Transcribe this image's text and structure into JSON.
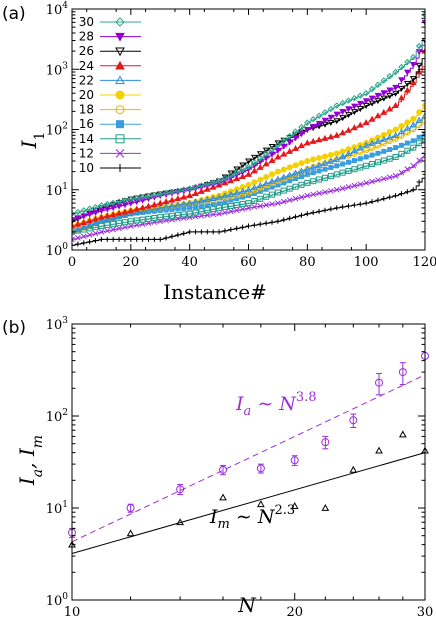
{
  "chart_data": [
    {
      "panel": "(a)",
      "type": "line",
      "xlabel": "Instance#",
      "ylabel_main": "I",
      "ylabel_sub": "1",
      "xlim": [
        0,
        120
      ],
      "ylim": [
        1,
        10000
      ],
      "yscale": "log",
      "grid": false,
      "legend_placement": "top-left",
      "x_ticks": [
        "0",
        "20",
        "40",
        "60",
        "80",
        "100",
        "120"
      ],
      "y_ticks": [
        {
          "base": "10",
          "exp": "0"
        },
        {
          "base": "10",
          "exp": "1"
        },
        {
          "base": "10",
          "exp": "2"
        },
        {
          "base": "10",
          "exp": "3"
        },
        {
          "base": "10",
          "exp": "4"
        }
      ],
      "series": [
        {
          "name": "30",
          "color": "#2ca58d",
          "marker": "diamond-open",
          "points": [
            [
              0,
              4
            ],
            [
              10,
              5.5
            ],
            [
              20,
              7
            ],
            [
              30,
              8.5
            ],
            [
              40,
              10.5
            ],
            [
              50,
              14
            ],
            [
              60,
              24
            ],
            [
              70,
              55
            ],
            [
              80,
              130
            ],
            [
              90,
              250
            ],
            [
              100,
              400
            ],
            [
              110,
              900
            ],
            [
              116,
              1600
            ],
            [
              119,
              3000
            ],
            [
              120,
              8000
            ]
          ]
        },
        {
          "name": "28",
          "color": "#9400d3",
          "marker": "tri-down-filled",
          "points": [
            [
              0,
              3.2
            ],
            [
              10,
              4.5
            ],
            [
              20,
              6
            ],
            [
              30,
              8
            ],
            [
              40,
              10
            ],
            [
              50,
              13
            ],
            [
              60,
              22
            ],
            [
              70,
              45
            ],
            [
              80,
              100
            ],
            [
              90,
              180
            ],
            [
              100,
              300
            ],
            [
              110,
              500
            ],
            [
              116,
              1200
            ],
            [
              119,
              2500
            ],
            [
              120,
              6000
            ]
          ]
        },
        {
          "name": "26",
          "color": "#000000",
          "marker": "tri-down-open",
          "points": [
            [
              0,
              3
            ],
            [
              10,
              5
            ],
            [
              20,
              7
            ],
            [
              30,
              8.5
            ],
            [
              40,
              10
            ],
            [
              50,
              14
            ],
            [
              60,
              30
            ],
            [
              70,
              60
            ],
            [
              80,
              100
            ],
            [
              90,
              140
            ],
            [
              100,
              250
            ],
            [
              110,
              400
            ],
            [
              116,
              700
            ],
            [
              119,
              1500
            ],
            [
              120,
              3000
            ]
          ]
        },
        {
          "name": "24",
          "color": "#e31a1c",
          "marker": "tri-up-filled",
          "points": [
            [
              0,
              2.5
            ],
            [
              10,
              3.5
            ],
            [
              20,
              4.5
            ],
            [
              30,
              6
            ],
            [
              40,
              8
            ],
            [
              50,
              12
            ],
            [
              60,
              18
            ],
            [
              70,
              35
            ],
            [
              80,
              60
            ],
            [
              90,
              80
            ],
            [
              100,
              130
            ],
            [
              110,
              250
            ],
            [
              116,
              600
            ],
            [
              119,
              1100
            ],
            [
              120,
              2000
            ]
          ]
        },
        {
          "name": "22",
          "color": "#2b8cd8",
          "marker": "tri-up-open",
          "points": [
            [
              0,
              2
            ],
            [
              10,
              3
            ],
            [
              20,
              4
            ],
            [
              30,
              5
            ],
            [
              40,
              6
            ],
            [
              50,
              7.5
            ],
            [
              60,
              10
            ],
            [
              70,
              15
            ],
            [
              80,
              22
            ],
            [
              90,
              32
            ],
            [
              100,
              55
            ],
            [
              110,
              80
            ],
            [
              116,
              120
            ],
            [
              120,
              170
            ]
          ]
        },
        {
          "name": "20",
          "color": "#f5d000",
          "marker": "circle-filled",
          "points": [
            [
              0,
              2.5
            ],
            [
              10,
              3.5
            ],
            [
              20,
              4.5
            ],
            [
              30,
              5
            ],
            [
              40,
              6
            ],
            [
              50,
              8
            ],
            [
              60,
              12
            ],
            [
              70,
              20
            ],
            [
              80,
              30
            ],
            [
              90,
              40
            ],
            [
              100,
              60
            ],
            [
              110,
              100
            ],
            [
              116,
              150
            ],
            [
              120,
              250
            ]
          ]
        },
        {
          "name": "18",
          "color": "#e6b800",
          "marker": "circle-open",
          "points": [
            [
              0,
              2
            ],
            [
              10,
              3
            ],
            [
              20,
              4
            ],
            [
              30,
              5
            ],
            [
              40,
              6
            ],
            [
              50,
              7
            ],
            [
              60,
              9
            ],
            [
              70,
              14
            ],
            [
              80,
              22
            ],
            [
              90,
              32
            ],
            [
              100,
              45
            ],
            [
              110,
              70
            ],
            [
              116,
              100
            ],
            [
              120,
              140
            ]
          ]
        },
        {
          "name": "16",
          "color": "#3a9de0",
          "marker": "square-filled",
          "points": [
            [
              0,
              2
            ],
            [
              10,
              3
            ],
            [
              20,
              4
            ],
            [
              30,
              4.5
            ],
            [
              40,
              5
            ],
            [
              50,
              6
            ],
            [
              60,
              8
            ],
            [
              70,
              12
            ],
            [
              80,
              18
            ],
            [
              90,
              25
            ],
            [
              100,
              35
            ],
            [
              110,
              50
            ],
            [
              116,
              65
            ],
            [
              120,
              85
            ]
          ]
        },
        {
          "name": "14",
          "color": "#1f9e89",
          "marker": "square-open",
          "points": [
            [
              0,
              2
            ],
            [
              10,
              2.5
            ],
            [
              20,
              3
            ],
            [
              30,
              3.5
            ],
            [
              40,
              4
            ],
            [
              50,
              5
            ],
            [
              60,
              6
            ],
            [
              70,
              9
            ],
            [
              80,
              13
            ],
            [
              90,
              18
            ],
            [
              100,
              25
            ],
            [
              110,
              35
            ],
            [
              116,
              50
            ],
            [
              120,
              70
            ]
          ]
        },
        {
          "name": "12",
          "color": "#9b30d9",
          "marker": "x",
          "points": [
            [
              0,
              1.5
            ],
            [
              10,
              2
            ],
            [
              20,
              2.5
            ],
            [
              30,
              3
            ],
            [
              40,
              3.5
            ],
            [
              50,
              4
            ],
            [
              60,
              5
            ],
            [
              70,
              6
            ],
            [
              80,
              8
            ],
            [
              90,
              10
            ],
            [
              100,
              13
            ],
            [
              110,
              17
            ],
            [
              116,
              25
            ],
            [
              120,
              38
            ]
          ]
        },
        {
          "name": "10",
          "color": "#000000",
          "marker": "plus",
          "points": [
            [
              0,
              1.2
            ],
            [
              10,
              1.5
            ],
            [
              20,
              1.5
            ],
            [
              30,
              1.5
            ],
            [
              40,
              2
            ],
            [
              50,
              2
            ],
            [
              60,
              2.5
            ],
            [
              70,
              3
            ],
            [
              80,
              4
            ],
            [
              90,
              5
            ],
            [
              100,
              6
            ],
            [
              110,
              8
            ],
            [
              116,
              10
            ],
            [
              120,
              18
            ]
          ]
        }
      ]
    },
    {
      "panel": "(b)",
      "type": "scatter",
      "xlabel": "N",
      "ylabel": "Ia, Im",
      "xscale": "log",
      "yscale": "log",
      "xlim": [
        10,
        30
      ],
      "ylim": [
        1,
        1000
      ],
      "grid": false,
      "x_ticks": [
        "10",
        "20",
        "30"
      ],
      "y_ticks": [
        {
          "base": "10",
          "exp": "0"
        },
        {
          "base": "10",
          "exp": "1"
        },
        {
          "base": "10",
          "exp": "2"
        },
        {
          "base": "10",
          "exp": "3"
        }
      ],
      "series": [
        {
          "name": "Ia",
          "color": "#9b30d9",
          "marker": "circle-open",
          "x": [
            10,
            12,
            14,
            16,
            18,
            20,
            22,
            24,
            26,
            28,
            30
          ],
          "y": [
            5.4,
            10,
            16,
            26,
            27,
            33,
            52,
            90,
            230,
            300,
            450
          ],
          "yerr": [
            0.6,
            1,
            2,
            3,
            3,
            4,
            8,
            15,
            60,
            80,
            0
          ]
        },
        {
          "name": "Im",
          "color": "#000000",
          "marker": "tri-up-open",
          "x": [
            10,
            12,
            14,
            16,
            18,
            20,
            22,
            24,
            26,
            28,
            30
          ],
          "y": [
            4,
            5.3,
            7,
            13,
            11,
            10.5,
            10,
            26,
            42,
            63,
            42
          ]
        }
      ],
      "fits": [
        {
          "name": "Ia fit",
          "color": "#9b30d9",
          "style": "dashed",
          "exponent": 3.8,
          "x": [
            10,
            30
          ],
          "y": [
            4.3,
            280
          ]
        },
        {
          "name": "Im fit",
          "color": "#000000",
          "style": "solid",
          "exponent": 2.3,
          "x": [
            10,
            30
          ],
          "y": [
            3.2,
            40
          ]
        }
      ],
      "annotations": [
        {
          "name": "ia-fit-label",
          "base": "I",
          "sub": "a",
          "rel": " ∼ N",
          "sup": "3.8",
          "color": "#9b30d9"
        },
        {
          "name": "im-fit-label",
          "base": "I",
          "sub": "m",
          "rel": " ∼ N",
          "sup": "2.3",
          "color": "#000000"
        }
      ]
    }
  ]
}
